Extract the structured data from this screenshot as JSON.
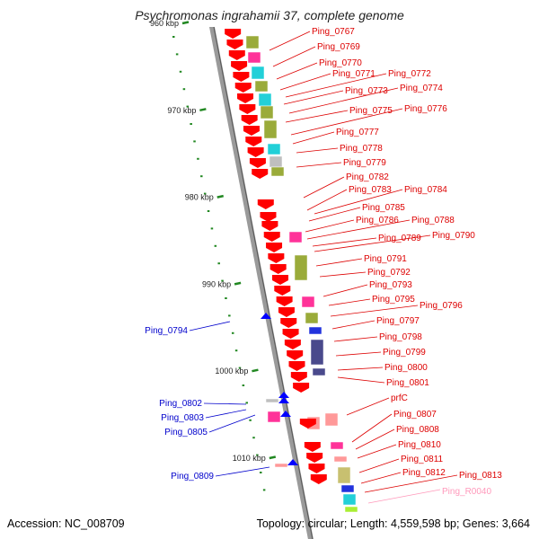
{
  "title": "Psychromonas ingrahamii 37, complete genome",
  "footer": {
    "accession": "Accession: NC_008709",
    "stats": "Topology: circular; Length: 4,559,598 bp; Genes: 3,664"
  },
  "scale": {
    "unit": "kbp",
    "ticks": [
      "960 kbp",
      "970 kbp",
      "980 kbp",
      "990 kbp",
      "1000 kbp",
      "1010 kbp"
    ]
  },
  "colors": {
    "forward_gene": "#ff0000",
    "reverse_gene": "#0000ff",
    "forward_label": "#dd0000",
    "reverse_label": "#0000cc",
    "rna_label": "#ff99bb",
    "backbone": "#9a9a9a",
    "tick": "#228822",
    "cog_olive": "#9aab3a",
    "cog_cyan": "#22d0d8",
    "cog_magenta": "#ff3399",
    "cog_salmon": "#ff9999",
    "cog_gray": "#bfbfbf",
    "cog_navy": "#4a4a8c",
    "cog_blue": "#2233dd",
    "cog_lime": "#aaee33",
    "cog_khaki": "#c8c070"
  },
  "forward_labels": [
    "Ping_0767",
    "Ping_0769",
    "Ping_0770",
    "Ping_0771",
    "Ping_0772",
    "Ping_0773",
    "Ping_0774",
    "Ping_0775",
    "Ping_0776",
    "Ping_0777",
    "Ping_0778",
    "Ping_0779",
    "Ping_0782",
    "Ping_0783",
    "Ping_0784",
    "Ping_0785",
    "Ping_0786",
    "Ping_0788",
    "Ping_0789",
    "Ping_0790",
    "Ping_0791",
    "Ping_0792",
    "Ping_0793",
    "Ping_0795",
    "Ping_0796",
    "Ping_0797",
    "Ping_0798",
    "Ping_0799",
    "Ping_0800",
    "Ping_0801",
    "prfC",
    "Ping_0807",
    "Ping_0808",
    "Ping_0810",
    "Ping_0811",
    "Ping_0812",
    "Ping_0813"
  ],
  "reverse_labels": [
    "Ping_0794",
    "Ping_0802",
    "Ping_0803",
    "Ping_0805",
    "Ping_0809"
  ],
  "rna_labels": [
    "Ping_R0040"
  ]
}
